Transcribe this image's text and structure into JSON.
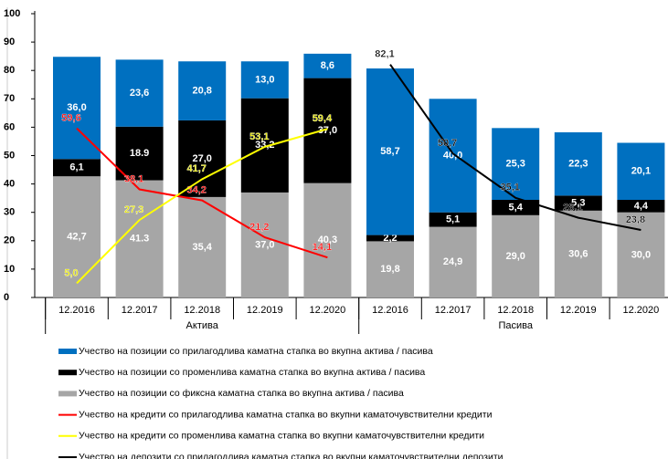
{
  "chart_data": {
    "type": "bar",
    "stacked": true,
    "categories": [
      "12.2016",
      "12.2017",
      "12.2018",
      "12.2019",
      "12.2020",
      "12.2016",
      "12.2017",
      "12.2018",
      "12.2019",
      "12.2020"
    ],
    "groups": [
      "Актива",
      "Пасива"
    ],
    "ylim": [
      0,
      100
    ],
    "yticks": [
      0,
      10,
      20,
      30,
      40,
      50,
      60,
      70,
      80,
      90,
      100
    ],
    "grid": false,
    "series": [
      {
        "name": "Учество на позиции со фиксна каматна стапка во вкупна актива / пасива",
        "type": "bar",
        "color": "#a6a6a6",
        "label_color": "#ffffff",
        "values": [
          42.7,
          41.3,
          35.4,
          37.0,
          40.3,
          19.8,
          24.9,
          29.0,
          30.6,
          30.0
        ],
        "value_labels": [
          "42,7",
          "41.3",
          "35,4",
          "37,0",
          "40,3",
          "19,8",
          "24,9",
          "29,0",
          "30,6",
          "30,0"
        ]
      },
      {
        "name": "Учество на позиции со променлива каматна стапка во вкупна актива / пасива",
        "type": "bar",
        "color": "#000000",
        "label_color": "#ffffff",
        "values": [
          6.1,
          18.9,
          27.0,
          33.2,
          37.0,
          2.2,
          5.1,
          5.4,
          5.3,
          4.4
        ],
        "value_labels": [
          "6,1",
          "18.9",
          "27,0",
          "33,2",
          "37,0",
          "2,2",
          "5,1",
          "5,4",
          "5,3",
          "4,4"
        ]
      },
      {
        "name": "Учество на позиции со прилагодлива каматна стапка во вкупна актива / пасива",
        "type": "bar",
        "color": "#0070c0",
        "label_color": "#ffffff",
        "values": [
          36.0,
          23.6,
          20.8,
          13.0,
          8.6,
          58.7,
          40.0,
          25.3,
          22.3,
          20.1
        ],
        "value_labels": [
          "36,0",
          "23,6",
          "20,8",
          "13,0",
          "8,6",
          "58,7",
          "40,0",
          "25,3",
          "22,3",
          "20,1"
        ]
      },
      {
        "name": "Учество на кредити со прилагодлива каматна стапка во вкупни каматочувствителни кредити",
        "type": "line",
        "color": "#ff0000",
        "label_color": "#ff0000",
        "values": [
          59.6,
          38.1,
          34.2,
          21.2,
          14.1,
          null,
          null,
          null,
          null,
          null
        ],
        "value_labels": [
          "59,6",
          "38,1",
          "34,2",
          "21,2",
          "14,1",
          null,
          null,
          null,
          null,
          null
        ]
      },
      {
        "name": "Учество на кредити со променлива каматна стапка во вкупни каматочувствителни кредити",
        "type": "line",
        "color": "#ffff00",
        "label_color": "#e6e600",
        "values": [
          5.0,
          27.3,
          41.7,
          53.1,
          59.4,
          null,
          null,
          null,
          null,
          null
        ],
        "value_labels": [
          "5,0",
          "27,3",
          "41,7",
          "53,1",
          "59,4",
          null,
          null,
          null,
          null,
          null
        ]
      },
      {
        "name": "Учество на депозити со прилагодлива каматна стапка во вкупни каматочувствителни депозити",
        "type": "line",
        "color": "#000000",
        "label_color": "#000000",
        "values": [
          null,
          null,
          null,
          null,
          null,
          82.1,
          50.7,
          35.1,
          28.1,
          23.8
        ],
        "value_labels": [
          null,
          null,
          null,
          null,
          null,
          "82,1",
          "50,7",
          "35,1",
          "28,1",
          "23,8"
        ]
      }
    ]
  }
}
